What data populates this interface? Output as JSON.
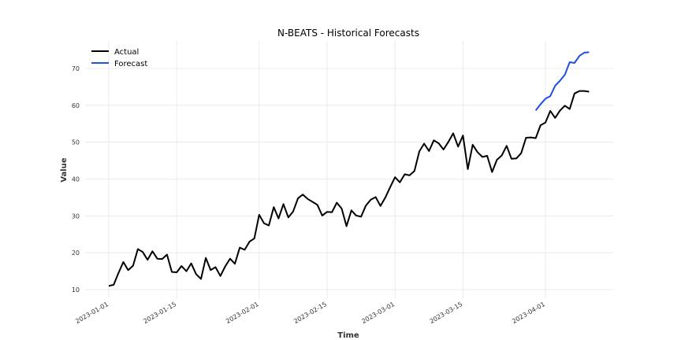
{
  "chart_data": {
    "type": "line",
    "title": "N-BEATS - Historical Forecasts",
    "xlabel": "Time",
    "ylabel": "Value",
    "x_start": "2023-01-01",
    "x_end": "2023-04-15",
    "ylim": [
      9,
      77
    ],
    "yticks": [
      10,
      20,
      30,
      40,
      50,
      60,
      70
    ],
    "xticks": [
      "2023-01-01",
      "2023-01-15",
      "2023-02-01",
      "2023-02-15",
      "2023-03-01",
      "2023-03-15",
      "2023-04-01"
    ],
    "grid": true,
    "legend_position": "top-left",
    "series": [
      {
        "name": "Actual",
        "color": "#000000",
        "x": [
          "2023-01-01",
          "2023-01-02",
          "2023-01-03",
          "2023-01-04",
          "2023-01-05",
          "2023-01-06",
          "2023-01-07",
          "2023-01-08",
          "2023-01-09",
          "2023-01-10",
          "2023-01-11",
          "2023-01-12",
          "2023-01-13",
          "2023-01-14",
          "2023-01-15",
          "2023-01-16",
          "2023-01-17",
          "2023-01-18",
          "2023-01-19",
          "2023-01-20",
          "2023-01-21",
          "2023-01-22",
          "2023-01-23",
          "2023-01-24",
          "2023-01-25",
          "2023-01-26",
          "2023-01-27",
          "2023-01-28",
          "2023-01-29",
          "2023-01-30",
          "2023-01-31",
          "2023-02-01",
          "2023-02-02",
          "2023-02-03",
          "2023-02-04",
          "2023-02-05",
          "2023-02-06",
          "2023-02-07",
          "2023-02-08",
          "2023-02-09",
          "2023-02-10",
          "2023-02-11",
          "2023-02-12",
          "2023-02-13",
          "2023-02-14",
          "2023-02-15",
          "2023-02-16",
          "2023-02-17",
          "2023-02-18",
          "2023-02-19",
          "2023-02-20",
          "2023-02-21",
          "2023-02-22",
          "2023-02-23",
          "2023-02-24",
          "2023-02-25",
          "2023-02-26",
          "2023-02-27",
          "2023-02-28",
          "2023-03-01",
          "2023-03-02",
          "2023-03-03",
          "2023-03-04",
          "2023-03-05",
          "2023-03-06",
          "2023-03-07",
          "2023-03-08",
          "2023-03-09",
          "2023-03-10",
          "2023-03-11",
          "2023-03-12",
          "2023-03-13",
          "2023-03-14",
          "2023-03-15",
          "2023-03-16",
          "2023-03-17",
          "2023-03-18",
          "2023-03-19",
          "2023-03-20",
          "2023-03-21",
          "2023-03-22",
          "2023-03-23",
          "2023-03-24",
          "2023-03-25",
          "2023-03-26",
          "2023-03-27",
          "2023-03-28",
          "2023-03-29",
          "2023-03-30",
          "2023-03-31",
          "2023-04-01",
          "2023-04-02",
          "2023-04-03",
          "2023-04-04",
          "2023-04-05",
          "2023-04-06",
          "2023-04-07",
          "2023-04-08",
          "2023-04-09",
          "2023-04-10"
        ],
        "values": [
          11.0,
          11.3,
          14.5,
          17.5,
          15.3,
          16.5,
          21.0,
          20.2,
          18.1,
          20.4,
          18.4,
          18.3,
          19.5,
          14.8,
          14.7,
          16.4,
          15.0,
          17.1,
          14.2,
          12.9,
          18.6,
          15.3,
          16.1,
          13.7,
          16.3,
          18.4,
          17.0,
          21.4,
          20.8,
          23.0,
          23.9,
          30.3,
          28.0,
          27.4,
          32.4,
          29.3,
          33.2,
          29.6,
          31.2,
          34.8,
          35.8,
          34.6,
          33.8,
          33.0,
          30.1,
          31.1,
          31.0,
          33.6,
          32.0,
          27.2,
          31.5,
          30.1,
          29.8,
          32.8,
          34.4,
          35.1,
          32.7,
          35.0,
          37.8,
          40.5,
          39.1,
          41.3,
          41.0,
          42.2,
          47.5,
          49.6,
          47.6,
          50.5,
          49.7,
          48.0,
          50.1,
          52.4,
          48.8,
          51.8,
          42.7,
          49.3,
          47.3,
          46.0,
          46.3,
          41.9,
          45.2,
          46.4,
          49.0,
          45.5,
          45.6,
          47.0,
          51.2,
          51.3,
          51.1,
          54.6,
          55.3,
          58.5,
          56.6,
          58.6,
          59.9,
          59.0,
          63.2,
          63.9,
          63.9,
          63.7
        ]
      },
      {
        "name": "Forecast",
        "color": "#1f4fe0",
        "x": [
          "2023-03-30",
          "2023-03-31",
          "2023-04-01",
          "2023-04-02",
          "2023-04-03",
          "2023-04-04",
          "2023-04-05",
          "2023-04-06",
          "2023-04-07",
          "2023-04-08",
          "2023-04-09",
          "2023-04-10"
        ],
        "values": [
          58.6,
          60.3,
          61.8,
          62.5,
          65.3,
          66.7,
          68.3,
          71.7,
          71.5,
          73.4,
          74.3,
          74.4
        ]
      }
    ]
  }
}
